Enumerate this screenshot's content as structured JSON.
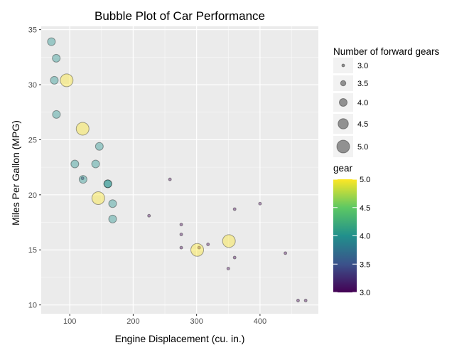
{
  "chart_data": {
    "type": "scatter",
    "title": "Bubble Plot of Car Performance",
    "xlabel": "Engine Displacement (cu. in.)",
    "ylabel": "Miles Per Gallon (MPG)",
    "xlim": [
      55,
      492
    ],
    "ylim": [
      9.2,
      35.3
    ],
    "x_ticks": [
      100,
      200,
      300,
      400
    ],
    "y_ticks": [
      10,
      15,
      20,
      25,
      30,
      35
    ],
    "grid": true,
    "legend_position": "right",
    "size_legend": {
      "title": "Number of forward gears",
      "values": [
        3.0,
        3.5,
        4.0,
        4.5,
        5.0
      ],
      "labels": [
        "3.0",
        "3.5",
        "4.0",
        "4.5",
        "5.0"
      ]
    },
    "color_legend": {
      "title": "gear",
      "range": [
        3.0,
        5.0
      ],
      "ticks": [
        3.0,
        3.5,
        4.0,
        4.5,
        5.0
      ],
      "labels": [
        "3.0",
        "3.5",
        "4.0",
        "4.5",
        "5.0"
      ],
      "colors": [
        "#440154",
        "#3b528b",
        "#21908c",
        "#5dc863",
        "#fde725"
      ]
    },
    "points": [
      {
        "x": 160,
        "y": 21.0,
        "gear": 4
      },
      {
        "x": 160,
        "y": 21.0,
        "gear": 4
      },
      {
        "x": 108,
        "y": 22.8,
        "gear": 4
      },
      {
        "x": 258,
        "y": 21.4,
        "gear": 3
      },
      {
        "x": 360,
        "y": 18.7,
        "gear": 3
      },
      {
        "x": 225,
        "y": 18.1,
        "gear": 3
      },
      {
        "x": 360,
        "y": 14.3,
        "gear": 3
      },
      {
        "x": 146.7,
        "y": 24.4,
        "gear": 4
      },
      {
        "x": 140.8,
        "y": 22.8,
        "gear": 4
      },
      {
        "x": 167.6,
        "y": 19.2,
        "gear": 4
      },
      {
        "x": 167.6,
        "y": 17.8,
        "gear": 4
      },
      {
        "x": 275.8,
        "y": 16.4,
        "gear": 3
      },
      {
        "x": 275.8,
        "y": 17.3,
        "gear": 3
      },
      {
        "x": 275.8,
        "y": 15.2,
        "gear": 3
      },
      {
        "x": 472,
        "y": 10.4,
        "gear": 3
      },
      {
        "x": 460,
        "y": 10.4,
        "gear": 3
      },
      {
        "x": 440,
        "y": 14.7,
        "gear": 3
      },
      {
        "x": 78.7,
        "y": 32.4,
        "gear": 4
      },
      {
        "x": 75.7,
        "y": 30.4,
        "gear": 4
      },
      {
        "x": 71.1,
        "y": 33.9,
        "gear": 4
      },
      {
        "x": 120.1,
        "y": 21.5,
        "gear": 3
      },
      {
        "x": 318,
        "y": 15.5,
        "gear": 3
      },
      {
        "x": 304,
        "y": 15.2,
        "gear": 3
      },
      {
        "x": 350,
        "y": 13.3,
        "gear": 3
      },
      {
        "x": 400,
        "y": 19.2,
        "gear": 3
      },
      {
        "x": 79,
        "y": 27.3,
        "gear": 4
      },
      {
        "x": 120.3,
        "y": 26.0,
        "gear": 5
      },
      {
        "x": 95.1,
        "y": 30.4,
        "gear": 5
      },
      {
        "x": 351,
        "y": 15.8,
        "gear": 5
      },
      {
        "x": 145,
        "y": 19.7,
        "gear": 5
      },
      {
        "x": 301,
        "y": 15.0,
        "gear": 5
      },
      {
        "x": 121,
        "y": 21.4,
        "gear": 4
      }
    ]
  }
}
